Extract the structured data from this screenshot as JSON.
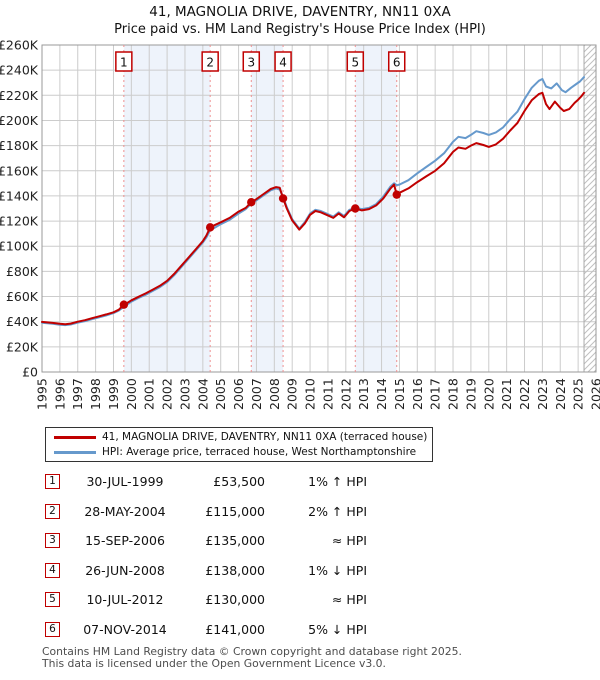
{
  "header": {
    "title": "41, MAGNOLIA DRIVE, DAVENTRY, NN11 0XA",
    "subtitle": "Price paid vs. HM Land Registry's House Price Index (HPI)"
  },
  "chart_data": {
    "type": "line",
    "title": "41, MAGNOLIA DRIVE, DAVENTRY, NN11 0XA",
    "subtitle": "Price paid vs. HM Land Registry's House Price Index (HPI)",
    "xlim": [
      1995,
      2026
    ],
    "ylim_k": [
      0,
      260
    ],
    "grid": true,
    "legend_position": "below",
    "y_ticks": [
      "£0",
      "£20K",
      "£40K",
      "£60K",
      "£80K",
      "£100K",
      "£120K",
      "£140K",
      "£160K",
      "£180K",
      "£200K",
      "£220K",
      "£240K",
      "£260K"
    ],
    "x_ticks": [
      1995,
      1996,
      1997,
      1998,
      1999,
      2000,
      2001,
      2002,
      2003,
      2004,
      2005,
      2006,
      2007,
      2008,
      2009,
      2010,
      2011,
      2012,
      2013,
      2014,
      2015,
      2016,
      2017,
      2018,
      2019,
      2020,
      2021,
      2022,
      2023,
      2024,
      2025,
      2026
    ],
    "no_data_after_x": 2025.33,
    "colors": {
      "price_line": "#c00000",
      "hpi_line": "#6699cc",
      "event_line": "#ee9090",
      "band_fill": "#eef3fb",
      "grid": "#cccccc",
      "plot_border": "#999999",
      "hatch": "#c0c0c0",
      "tick_text": "#222222"
    },
    "shaded_bands_x": [
      [
        1999.58,
        2004.41
      ],
      [
        2006.71,
        2008.49
      ],
      [
        2012.53,
        2014.85
      ]
    ],
    "sales": [
      {
        "n": "1",
        "x": 1999.58,
        "value_k": 53.5
      },
      {
        "n": "2",
        "x": 2004.41,
        "value_k": 115
      },
      {
        "n": "3",
        "x": 2006.71,
        "value_k": 135
      },
      {
        "n": "4",
        "x": 2008.49,
        "value_k": 138
      },
      {
        "n": "5",
        "x": 2012.53,
        "value_k": 130
      },
      {
        "n": "6",
        "x": 2014.85,
        "value_k": 141
      }
    ],
    "series": [
      {
        "name": "hpi",
        "legend": "HPI: Average price, terraced house, West Northamptonshire",
        "color": "#6699cc",
        "points": [
          [
            1995.0,
            39.2
          ],
          [
            1995.3,
            38.8
          ],
          [
            1995.6,
            38.3
          ],
          [
            1996.0,
            37.6
          ],
          [
            1996.3,
            37.3
          ],
          [
            1996.6,
            37.8
          ],
          [
            1997.0,
            39.2
          ],
          [
            1997.4,
            40.4
          ],
          [
            1997.8,
            42.0
          ],
          [
            1998.2,
            43.5
          ],
          [
            1998.6,
            45.0
          ],
          [
            1999.0,
            46.8
          ],
          [
            1999.3,
            48.8
          ],
          [
            1999.6,
            52.0
          ],
          [
            2000.0,
            56.0
          ],
          [
            2000.4,
            58.8
          ],
          [
            2000.8,
            61.5
          ],
          [
            2001.2,
            64.5
          ],
          [
            2001.6,
            67.5
          ],
          [
            2002.0,
            71.5
          ],
          [
            2002.4,
            77.0
          ],
          [
            2002.8,
            83.5
          ],
          [
            2003.2,
            90.0
          ],
          [
            2003.6,
            96.5
          ],
          [
            2004.0,
            103.0
          ],
          [
            2004.2,
            107.0
          ],
          [
            2004.41,
            112.8
          ],
          [
            2004.7,
            115.0
          ],
          [
            2005.0,
            117.5
          ],
          [
            2005.5,
            121.0
          ],
          [
            2006.0,
            126.0
          ],
          [
            2006.4,
            129.5
          ],
          [
            2006.71,
            134.0
          ],
          [
            2007.0,
            136.5
          ],
          [
            2007.4,
            140.5
          ],
          [
            2007.8,
            144.5
          ],
          [
            2008.1,
            146.0
          ],
          [
            2008.3,
            145.0
          ],
          [
            2008.49,
            139.5
          ],
          [
            2008.7,
            131.0
          ],
          [
            2009.0,
            121.5
          ],
          [
            2009.4,
            114.0
          ],
          [
            2009.7,
            119.0
          ],
          [
            2010.0,
            126.0
          ],
          [
            2010.3,
            129.0
          ],
          [
            2010.6,
            128.0
          ],
          [
            2011.0,
            125.5
          ],
          [
            2011.3,
            123.5
          ],
          [
            2011.6,
            127.0
          ],
          [
            2011.9,
            124.0
          ],
          [
            2012.2,
            129.0
          ],
          [
            2012.53,
            130.5
          ],
          [
            2012.9,
            129.5
          ],
          [
            2013.3,
            130.5
          ],
          [
            2013.7,
            133.5
          ],
          [
            2014.1,
            139.5
          ],
          [
            2014.5,
            147.5
          ],
          [
            2014.7,
            150.0
          ],
          [
            2014.85,
            148.5
          ],
          [
            2015.0,
            149.0
          ],
          [
            2015.5,
            152.5
          ],
          [
            2016.0,
            158.0
          ],
          [
            2016.5,
            163.0
          ],
          [
            2017.0,
            168.0
          ],
          [
            2017.5,
            174.0
          ],
          [
            2018.0,
            183.0
          ],
          [
            2018.3,
            187.0
          ],
          [
            2018.7,
            186.0
          ],
          [
            2019.0,
            188.5
          ],
          [
            2019.3,
            191.5
          ],
          [
            2019.7,
            190.0
          ],
          [
            2020.0,
            188.5
          ],
          [
            2020.4,
            190.5
          ],
          [
            2020.8,
            194.5
          ],
          [
            2021.2,
            201.0
          ],
          [
            2021.6,
            207.0
          ],
          [
            2022.0,
            217.0
          ],
          [
            2022.4,
            226.0
          ],
          [
            2022.8,
            231.5
          ],
          [
            2023.0,
            233.0
          ],
          [
            2023.2,
            227.0
          ],
          [
            2023.5,
            225.5
          ],
          [
            2023.8,
            229.5
          ],
          [
            2024.1,
            224.0
          ],
          [
            2024.3,
            222.5
          ],
          [
            2024.6,
            226.0
          ],
          [
            2024.9,
            229.0
          ],
          [
            2025.1,
            231.0
          ],
          [
            2025.33,
            234.5
          ]
        ]
      },
      {
        "name": "price-paid",
        "legend": "41, MAGNOLIA DRIVE, DAVENTRY, NN11 0XA (terraced house)",
        "color": "#c00000",
        "points": [
          [
            1995.0,
            39.8
          ],
          [
            1995.3,
            39.4
          ],
          [
            1995.6,
            39.0
          ],
          [
            1996.0,
            38.3
          ],
          [
            1996.3,
            38.0
          ],
          [
            1996.6,
            38.5
          ],
          [
            1997.0,
            40.0
          ],
          [
            1997.4,
            41.2
          ],
          [
            1997.8,
            42.8
          ],
          [
            1998.2,
            44.3
          ],
          [
            1998.6,
            45.8
          ],
          [
            1999.0,
            47.5
          ],
          [
            1999.3,
            49.5
          ],
          [
            1999.58,
            53.5
          ],
          [
            1999.8,
            55.2
          ],
          [
            2000.0,
            57.0
          ],
          [
            2000.4,
            59.8
          ],
          [
            2000.8,
            62.5
          ],
          [
            2001.2,
            65.5
          ],
          [
            2001.6,
            68.5
          ],
          [
            2002.0,
            72.5
          ],
          [
            2002.4,
            78.0
          ],
          [
            2002.8,
            84.5
          ],
          [
            2003.2,
            91.0
          ],
          [
            2003.6,
            97.5
          ],
          [
            2004.0,
            104.0
          ],
          [
            2004.2,
            108.5
          ],
          [
            2004.41,
            115.0
          ],
          [
            2004.7,
            117.0
          ],
          [
            2005.0,
            119.0
          ],
          [
            2005.5,
            122.5
          ],
          [
            2006.0,
            127.5
          ],
          [
            2006.4,
            130.5
          ],
          [
            2006.71,
            135.0
          ],
          [
            2007.0,
            137.5
          ],
          [
            2007.4,
            141.5
          ],
          [
            2007.8,
            145.5
          ],
          [
            2008.1,
            147.0
          ],
          [
            2008.3,
            146.5
          ],
          [
            2008.49,
            138.0
          ],
          [
            2008.7,
            130.0
          ],
          [
            2009.0,
            120.5
          ],
          [
            2009.4,
            113.2
          ],
          [
            2009.7,
            118.0
          ],
          [
            2010.0,
            125.0
          ],
          [
            2010.3,
            128.0
          ],
          [
            2010.6,
            127.0
          ],
          [
            2011.0,
            124.5
          ],
          [
            2011.3,
            122.5
          ],
          [
            2011.6,
            126.0
          ],
          [
            2011.9,
            123.0
          ],
          [
            2012.2,
            128.0
          ],
          [
            2012.53,
            130.0
          ],
          [
            2012.9,
            128.5
          ],
          [
            2013.3,
            129.5
          ],
          [
            2013.7,
            132.5
          ],
          [
            2014.1,
            138.0
          ],
          [
            2014.5,
            146.0
          ],
          [
            2014.7,
            149.0
          ],
          [
            2014.85,
            141.0
          ],
          [
            2015.0,
            142.5
          ],
          [
            2015.5,
            146.0
          ],
          [
            2016.0,
            151.0
          ],
          [
            2016.5,
            155.5
          ],
          [
            2017.0,
            160.0
          ],
          [
            2017.5,
            166.0
          ],
          [
            2018.0,
            175.0
          ],
          [
            2018.3,
            178.5
          ],
          [
            2018.7,
            177.5
          ],
          [
            2019.0,
            180.0
          ],
          [
            2019.3,
            182.0
          ],
          [
            2019.7,
            180.5
          ],
          [
            2020.0,
            179.0
          ],
          [
            2020.4,
            181.0
          ],
          [
            2020.8,
            185.5
          ],
          [
            2021.2,
            192.0
          ],
          [
            2021.6,
            198.0
          ],
          [
            2022.0,
            207.5
          ],
          [
            2022.4,
            216.0
          ],
          [
            2022.8,
            221.0
          ],
          [
            2023.0,
            222.0
          ],
          [
            2023.2,
            213.0
          ],
          [
            2023.4,
            209.0
          ],
          [
            2023.7,
            215.0
          ],
          [
            2024.0,
            210.0
          ],
          [
            2024.2,
            207.5
          ],
          [
            2024.5,
            209.0
          ],
          [
            2024.8,
            214.0
          ],
          [
            2025.0,
            216.5
          ],
          [
            2025.2,
            219.5
          ],
          [
            2025.33,
            222.0
          ]
        ]
      }
    ]
  },
  "table": {
    "rows": [
      {
        "n": "1",
        "date": "30-JUL-1999",
        "price": "£53,500",
        "hpi": "1% ↑ HPI"
      },
      {
        "n": "2",
        "date": "28-MAY-2004",
        "price": "£115,000",
        "hpi": "2% ↑ HPI"
      },
      {
        "n": "3",
        "date": "15-SEP-2006",
        "price": "£135,000",
        "hpi": "≈ HPI"
      },
      {
        "n": "4",
        "date": "26-JUN-2008",
        "price": "£138,000",
        "hpi": "1% ↓ HPI"
      },
      {
        "n": "5",
        "date": "10-JUL-2012",
        "price": "£130,000",
        "hpi": "≈ HPI"
      },
      {
        "n": "6",
        "date": "07-NOV-2014",
        "price": "£141,000",
        "hpi": "5% ↓ HPI"
      }
    ]
  },
  "footer": {
    "line1": "Contains HM Land Registry data © Crown copyright and database right 2025.",
    "line2": "This data is licensed under the Open Government Licence v3.0."
  }
}
